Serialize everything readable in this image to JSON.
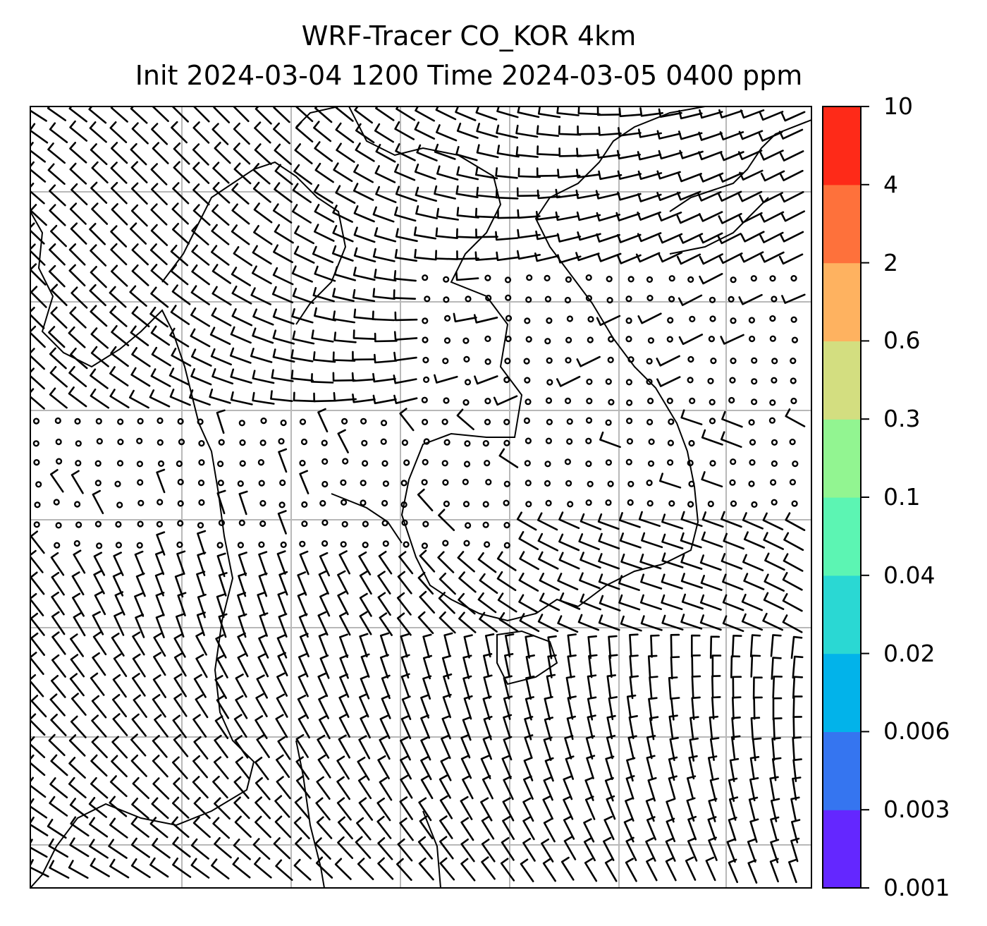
{
  "title": {
    "line1": "WRF-Tracer CO_KOR 4km",
    "line2": "Init 2024-03-04 1200 Time 2024-03-05 0400 ppm"
  },
  "colorbar": {
    "ticks": [
      "10",
      "4",
      "2",
      "0.6",
      "0.3",
      "0.1",
      "0.04",
      "0.02",
      "0.006",
      "0.003",
      "0.001"
    ],
    "colors": [
      "#6427ff",
      "#3575f0",
      "#02b3ea",
      "#2ad8d3",
      "#5cf5b3",
      "#92f591",
      "#d3de80",
      "#feb260",
      "#fe713b",
      "#fe2a18"
    ]
  },
  "map": {
    "gridlines": true,
    "overlay": "wind-barbs",
    "colors": {
      "grid": "#b8b8b8",
      "coast": "#000000",
      "barb": "#000000"
    }
  }
}
